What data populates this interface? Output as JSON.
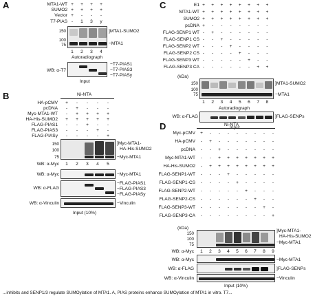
{
  "panelA": {
    "letter": "A",
    "rows": [
      "MTA1-WT",
      "SUMO2",
      "Vector",
      "T7-PIAS"
    ],
    "signs": [
      [
        "+",
        "+",
        "+",
        "+"
      ],
      [
        "+",
        "+",
        "+",
        "+"
      ],
      [
        "+",
        "-",
        "-",
        "-"
      ],
      [
        "-",
        "1",
        "3",
        "y"
      ]
    ],
    "markers": [
      "150",
      "100",
      "75"
    ],
    "right_labels": [
      "MTA1-SUMO2",
      "MTA1"
    ],
    "lanes": [
      "1",
      "2",
      "3",
      "4"
    ],
    "autoradiograph": "Autoradiograph",
    "wb_label": "WB: α-T7",
    "wb_right": [
      "T7-PIAS1",
      "T7-PIAS3",
      "T7-PIASy"
    ],
    "input": "Input"
  },
  "panelB": {
    "letter": "B",
    "header": "Ni-NTA",
    "rows": [
      "HA-pCMV",
      "pcDNA",
      "Myc-MTA1-WT",
      "HA-His-SUMO2",
      "FLAG-PIAS1",
      "FLAG-PIAS3",
      "FLAG-PIASy"
    ],
    "signs": [
      [
        "+",
        "-",
        "-",
        "-",
        "-"
      ],
      [
        "-",
        "+",
        "-",
        "-",
        "-"
      ],
      [
        "-",
        "+",
        "+",
        "+",
        "+"
      ],
      [
        "+",
        "+",
        "+",
        "+",
        "+"
      ],
      [
        "-",
        "-",
        "+",
        "-",
        "-"
      ],
      [
        "-",
        "-",
        "-",
        "+",
        "-"
      ],
      [
        "-",
        "-",
        "-",
        "-",
        "+"
      ]
    ],
    "markers": [
      "150",
      "100",
      "75"
    ],
    "right_labels": [
      "Myc-MTA1-",
      "HA-His-SUMO2",
      "Myc-MTA1"
    ],
    "wb_myc": "WB: α-Myc",
    "lanes": [
      "1",
      "2",
      "3",
      "4",
      "5"
    ],
    "wb_myc2": "WB: α-Myc",
    "myc_right": "Myc-MTA1",
    "wb_flag": "WB: α-FLAG",
    "flag_right": [
      "FLAG-PIAS1",
      "FLAG-PIAS3",
      "FLAG-PIASy"
    ],
    "wb_vinculin": "WB: α-Vinculin",
    "vinculin_right": "Vinculin",
    "input": "Input (10%)"
  },
  "panelC": {
    "letter": "C",
    "rows": [
      "E1",
      "MTA1-WT",
      "SUMO2",
      "pcDNA",
      "FLAG-SENP1 WT",
      "FLAG-SENP1 CS",
      "FLAG-SENP2 WT",
      "FLAG-SENP2 CS",
      "FLAG-SENP3 WT",
      "FLAG-SENP3 CA"
    ],
    "signs": [
      [
        "+",
        "+",
        "+",
        "+",
        "+",
        "+",
        "+",
        "+"
      ],
      [
        "+",
        "+",
        "+",
        "+",
        "+",
        "+",
        "+",
        "+"
      ],
      [
        "+",
        "+",
        "+",
        "+",
        "+",
        "+",
        "+",
        "+"
      ],
      [
        "+",
        "-",
        "-",
        "-",
        "-",
        "-",
        "-",
        "-"
      ],
      [
        "-",
        "+",
        "-",
        "-",
        "-",
        "-",
        "-",
        "-"
      ],
      [
        "-",
        "-",
        "+",
        "-",
        "-",
        "-",
        "-",
        "-"
      ],
      [
        "-",
        "-",
        "-",
        "+",
        "-",
        "-",
        "-",
        "-"
      ],
      [
        "-",
        "-",
        "-",
        "-",
        "+",
        "-",
        "-",
        "-"
      ],
      [
        "-",
        "-",
        "-",
        "-",
        "-",
        "+",
        "-",
        "-"
      ],
      [
        "-",
        "-",
        "-",
        "-",
        "-",
        "-",
        "+",
        "+"
      ]
    ],
    "kda": "(kDa)",
    "markers": [
      "150",
      "100",
      "75"
    ],
    "right_labels": [
      "MTA1-SUMO2",
      "MTA1"
    ],
    "lanes": [
      "1",
      "2",
      "3",
      "4",
      "5",
      "6",
      "7",
      "8"
    ],
    "autoradiograph": "Autoradiograph",
    "wb_label": "WB: α-FLAG",
    "wb_right": "FLAG-SENPs",
    "input": "Input"
  },
  "panelD": {
    "letter": "D",
    "header": "Ni-NTA",
    "rows": [
      "Myc-pCMV",
      "HA-pCMV",
      "pcDNA",
      "Myc-MTA1-WT",
      "HA-His-SUMO2",
      "FLAG-SENP1-WT",
      "FLAG-SENP1-CS",
      "FLAG-SENP2-WT",
      "FLAG-SENP2-CS",
      "FLAG-SENP3-WT",
      "FLAG-SENP3-CA"
    ],
    "signs": [
      [
        "+",
        "-",
        "-",
        "-",
        "-",
        "-",
        "-",
        "-",
        "-"
      ],
      [
        "-",
        "+",
        "-",
        "-",
        "-",
        "-",
        "-",
        "-",
        "-"
      ],
      [
        "-",
        "-",
        "+",
        "-",
        "-",
        "-",
        "-",
        "-",
        "-"
      ],
      [
        "-",
        "-",
        "+",
        "+",
        "+",
        "+",
        "+",
        "+",
        "+"
      ],
      [
        "-",
        "+",
        "+",
        "+",
        "+",
        "+",
        "+",
        "+",
        "+"
      ],
      [
        "-",
        "-",
        "-",
        "+",
        "-",
        "-",
        "-",
        "-",
        "-"
      ],
      [
        "-",
        "-",
        "-",
        "-",
        "+",
        "-",
        "-",
        "-",
        "-"
      ],
      [
        "-",
        "-",
        "-",
        "-",
        "-",
        "+",
        "-",
        "-",
        "-"
      ],
      [
        "-",
        "-",
        "-",
        "-",
        "-",
        "-",
        "+",
        "-",
        "-"
      ],
      [
        "-",
        "-",
        "-",
        "-",
        "-",
        "-",
        "-",
        "+",
        "-"
      ],
      [
        "-",
        "-",
        "-",
        "-",
        "-",
        "-",
        "-",
        "-",
        "+"
      ]
    ],
    "kda": "(kDa)",
    "markers": [
      "150",
      "100",
      "75"
    ],
    "right_labels": [
      "Myc-MTA1-",
      "HA-His-SUMO2",
      "Myc-MTA1"
    ],
    "wb_myc": "WB: α-Myc",
    "lanes": [
      "1",
      "2",
      "3",
      "4",
      "5",
      "6",
      "7",
      "8",
      "9"
    ],
    "wb_myc2": "WB: α-Myc",
    "myc_right": "Myc-MTA1",
    "wb_flag": "WB: α-FLAG",
    "flag_right": "FLAG-SENPs",
    "wb_vinculin": "WB: α-Vinculin",
    "vinculin_right": "Vinculin",
    "input": "Input (10%)"
  },
  "caption": "...inhibits and SENP1/3 regulate SUMOylation of MTA1. A, PIAS proteins enhance SUMOylation of MTA1 in vitro. T7..."
}
